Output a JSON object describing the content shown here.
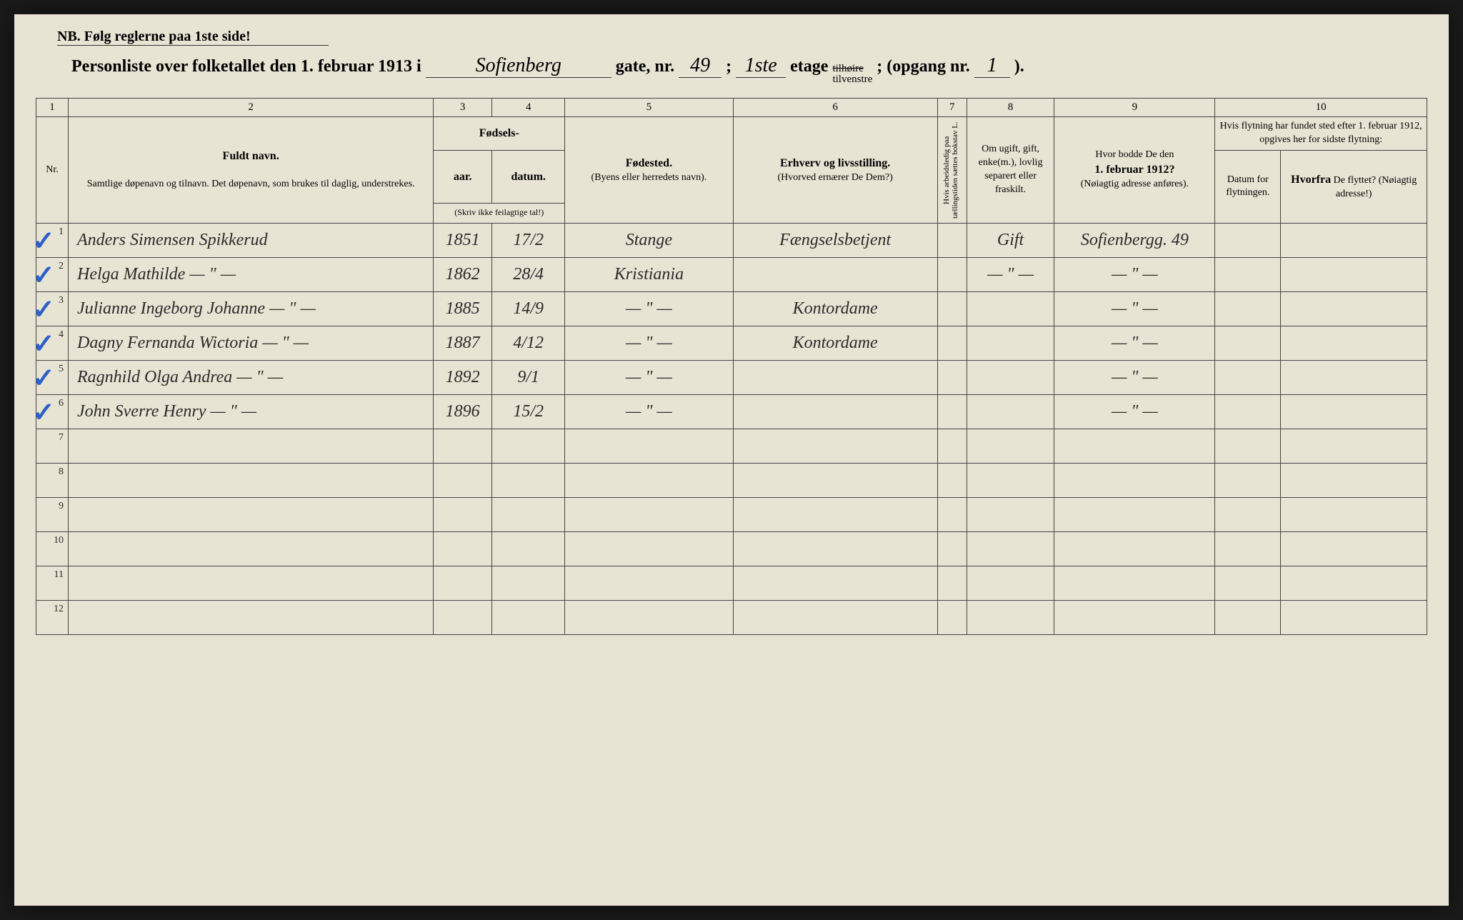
{
  "paper_bg": "#e8e4d4",
  "ink": "#2a2a2a",
  "check_color": "#2b5fc9",
  "nb_text": "NB.  Følg reglerne paa 1ste side!",
  "header": {
    "prefix": "Personliste over folketallet den 1. februar 1913 i",
    "street": "Sofienberg",
    "gate": "gate, nr.",
    "nr": "49",
    "semi": ";",
    "floor": "1ste",
    "etage": "etage",
    "hoire": "tilhøire",
    "venstre": "tilvenstre",
    "opgang": "; (opgang nr.",
    "opgang_nr": "1",
    "close": ")."
  },
  "colnums": [
    "1",
    "2",
    "3",
    "4",
    "5",
    "6",
    "7",
    "8",
    "9",
    "10"
  ],
  "headers": {
    "nr": "Nr.",
    "name_b": "Fuldt navn.",
    "name_sub": "Samtlige døpenavn og tilnavn. Det døpenavn, som brukes til daglig, understrekes.",
    "birth": "Fødsels-",
    "year": "aar.",
    "date": "datum.",
    "birth_note": "(Skriv ikke feilagtige tal!)",
    "bp_b": "Fødested.",
    "bp_sub": "(Byens eller herredets navn).",
    "occ_b": "Erhverv og livsstilling.",
    "occ_sub": "(Hvorved ernærer De Dem?)",
    "col7": "Hvis arbeidsledig paa tællingstiden sættes bokstav L.",
    "col8": "Om ugift, gift, enke(m.), lovlig separert eller fraskilt.",
    "col9_a": "Hvor bodde De den",
    "col9_b": "1. februar 1912?",
    "col9_c": "(Nøiagtig adresse anføres).",
    "col10_top": "Hvis flytning har fundet sted efter 1. februar 1912, opgives her for sidste flytning:",
    "col10a": "Datum for flytningen.",
    "col10b_a": "Hvorfra",
    "col10b_b": " De flyttet? (Nøiagtig adresse!)"
  },
  "rows": [
    {
      "nr": "1",
      "chk": true,
      "name": "Anders Simensen Spikkerud",
      "yr": "1851",
      "dt": "17/2",
      "bp": "Stange",
      "occ": "Fængselsbetjent",
      "c7": "",
      "c8": "Gift",
      "c9": "Sofienbergg. 49",
      "c10a": "",
      "c10b": ""
    },
    {
      "nr": "2",
      "chk": true,
      "name": "Helga Mathilde   — \" —",
      "yr": "1862",
      "dt": "28/4",
      "bp": "Kristiania",
      "occ": "",
      "c7": "",
      "c8": "— \" —",
      "c9": "— \" —",
      "c10a": "",
      "c10b": ""
    },
    {
      "nr": "3",
      "chk": true,
      "name": "Julianne Ingeborg Johanne — \" —",
      "yr": "1885",
      "dt": "14/9",
      "bp": "— \" —",
      "occ": "Kontordame",
      "c7": "",
      "c8": "",
      "c9": "— \" —",
      "c10a": "",
      "c10b": ""
    },
    {
      "nr": "4",
      "chk": true,
      "name": "Dagny Fernanda Wictoria — \" —",
      "yr": "1887",
      "dt": "4/12",
      "bp": "— \" —",
      "occ": "Kontordame",
      "c7": "",
      "c8": "",
      "c9": "— \" —",
      "c10a": "",
      "c10b": ""
    },
    {
      "nr": "5",
      "chk": true,
      "name": "Ragnhild Olga Andrea   — \" —",
      "yr": "1892",
      "dt": "9/1",
      "bp": "— \" —",
      "occ": "",
      "c7": "",
      "c8": "",
      "c9": "— \" —",
      "c10a": "",
      "c10b": ""
    },
    {
      "nr": "6",
      "chk": true,
      "name": "John Sverre Henry   — \" —",
      "yr": "1896",
      "dt": "15/2",
      "bp": "— \" —",
      "occ": "",
      "c7": "",
      "c8": "",
      "c9": "— \" —",
      "c10a": "",
      "c10b": ""
    },
    {
      "nr": "7",
      "chk": false,
      "name": "",
      "yr": "",
      "dt": "",
      "bp": "",
      "occ": "",
      "c7": "",
      "c8": "",
      "c9": "",
      "c10a": "",
      "c10b": ""
    },
    {
      "nr": "8",
      "chk": false,
      "name": "",
      "yr": "",
      "dt": "",
      "bp": "",
      "occ": "",
      "c7": "",
      "c8": "",
      "c9": "",
      "c10a": "",
      "c10b": ""
    },
    {
      "nr": "9",
      "chk": false,
      "name": "",
      "yr": "",
      "dt": "",
      "bp": "",
      "occ": "",
      "c7": "",
      "c8": "",
      "c9": "",
      "c10a": "",
      "c10b": ""
    },
    {
      "nr": "10",
      "chk": false,
      "name": "",
      "yr": "",
      "dt": "",
      "bp": "",
      "occ": "",
      "c7": "",
      "c8": "",
      "c9": "",
      "c10a": "",
      "c10b": ""
    },
    {
      "nr": "11",
      "chk": false,
      "name": "",
      "yr": "",
      "dt": "",
      "bp": "",
      "occ": "",
      "c7": "",
      "c8": "",
      "c9": "",
      "c10a": "",
      "c10b": ""
    },
    {
      "nr": "12",
      "chk": false,
      "name": "",
      "yr": "",
      "dt": "",
      "bp": "",
      "occ": "",
      "c7": "",
      "c8": "",
      "c9": "",
      "c10a": "",
      "c10b": ""
    }
  ]
}
